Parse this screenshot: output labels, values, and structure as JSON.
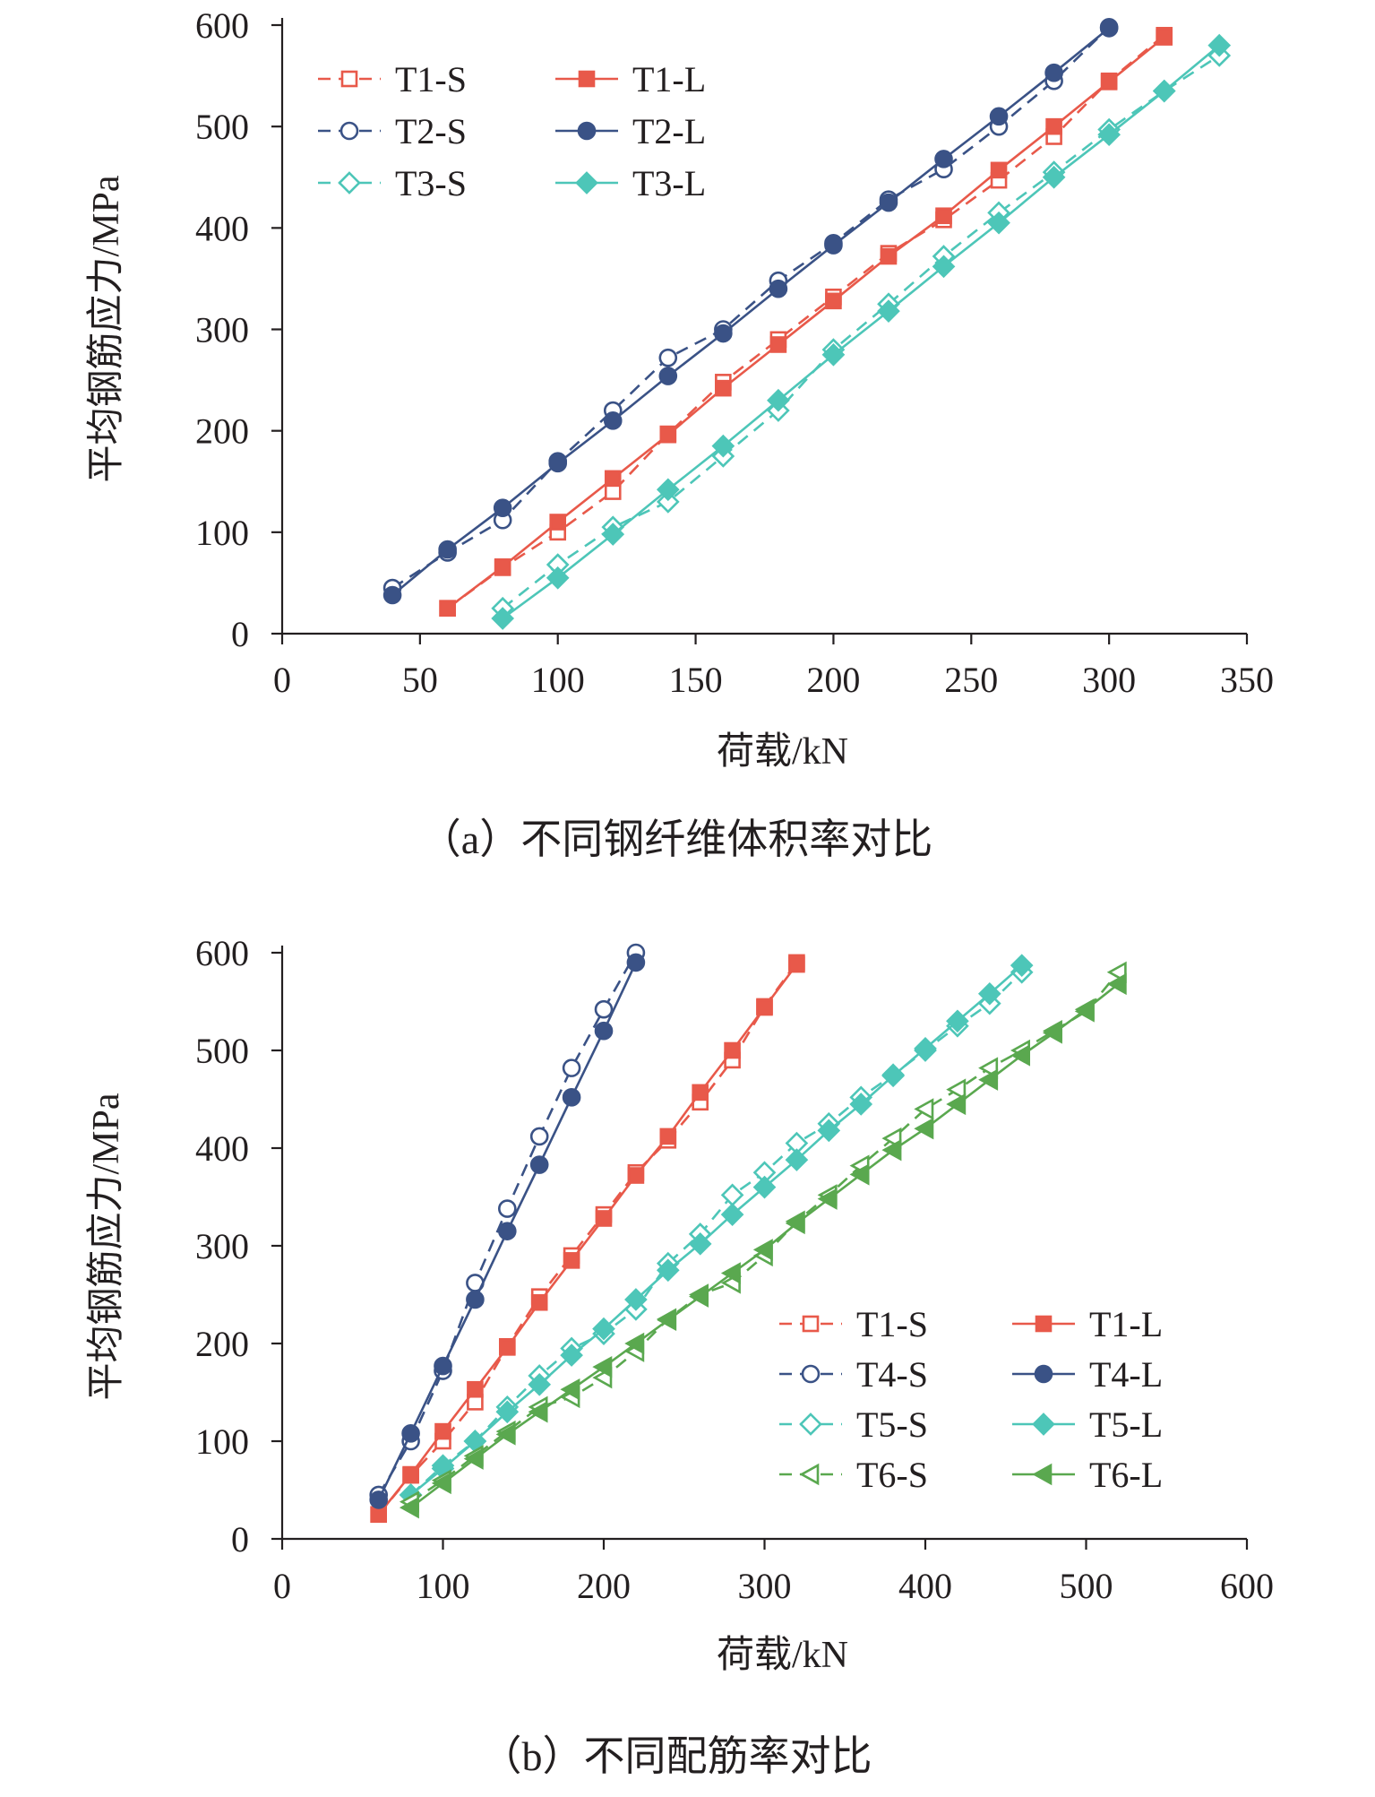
{
  "chart_data": [
    {
      "type": "line",
      "caption": "（a）不同钢纤维体积率对比",
      "xlabel": "荷载/kN",
      "ylabel": "平均钢筋应力/MPa",
      "xlim": [
        0,
        350
      ],
      "ylim": [
        0,
        600
      ],
      "xticks": [
        "0",
        "50",
        "100",
        "150",
        "200",
        "250",
        "300",
        "350"
      ],
      "yticks": [
        "0",
        "100",
        "200",
        "300",
        "400",
        "500",
        "600"
      ],
      "grid": false,
      "legend_position": "top-left",
      "series": [
        {
          "name": "T1-S",
          "color": "#e8594a",
          "marker": "square-open",
          "dash": true,
          "x": [
            60,
            80,
            100,
            120,
            140,
            160,
            180,
            200,
            220,
            240,
            260,
            280,
            300,
            320
          ],
          "y": [
            25,
            65,
            100,
            140,
            197,
            248,
            290,
            332,
            375,
            408,
            447,
            490,
            545,
            590
          ]
        },
        {
          "name": "T1-L",
          "color": "#e8594a",
          "marker": "square-filled",
          "dash": false,
          "x": [
            60,
            80,
            100,
            120,
            140,
            160,
            180,
            200,
            220,
            240,
            260,
            280,
            300,
            320
          ],
          "y": [
            25,
            66,
            110,
            153,
            196,
            242,
            285,
            328,
            372,
            412,
            457,
            500,
            544,
            588
          ]
        },
        {
          "name": "T2-S",
          "color": "#3a5286",
          "marker": "circle-open",
          "dash": true,
          "x": [
            40,
            60,
            80,
            100,
            120,
            140,
            160,
            180,
            200,
            220,
            240,
            260,
            280,
            300
          ],
          "y": [
            45,
            80,
            112,
            170,
            220,
            272,
            300,
            348,
            385,
            428,
            458,
            500,
            545,
            598
          ]
        },
        {
          "name": "T2-L",
          "color": "#3a5286",
          "marker": "circle-filled",
          "dash": false,
          "x": [
            40,
            60,
            80,
            100,
            120,
            140,
            160,
            180,
            200,
            220,
            240,
            260,
            280,
            300
          ],
          "y": [
            38,
            83,
            124,
            168,
            210,
            254,
            296,
            340,
            383,
            425,
            468,
            510,
            553,
            597
          ]
        },
        {
          "name": "T3-S",
          "color": "#4dc6b8",
          "marker": "diamond-open",
          "dash": true,
          "x": [
            80,
            100,
            120,
            140,
            160,
            180,
            200,
            220,
            240,
            260,
            280,
            300,
            320,
            340
          ],
          "y": [
            25,
            68,
            105,
            130,
            175,
            220,
            280,
            325,
            372,
            415,
            455,
            497,
            535,
            570
          ]
        },
        {
          "name": "T3-L",
          "color": "#4dc6b8",
          "marker": "diamond-filled",
          "dash": false,
          "x": [
            80,
            100,
            120,
            140,
            160,
            180,
            200,
            220,
            240,
            260,
            280,
            300,
            320,
            340
          ],
          "y": [
            15,
            55,
            98,
            142,
            185,
            230,
            275,
            318,
            362,
            405,
            450,
            492,
            535,
            580
          ]
        }
      ]
    },
    {
      "type": "line",
      "caption": "（b）不同配筋率对比",
      "xlabel": "荷载/kN",
      "ylabel": "平均钢筋应力/MPa",
      "xlim": [
        0,
        600
      ],
      "ylim": [
        0,
        600
      ],
      "xticks": [
        "0",
        "100",
        "200",
        "300",
        "400",
        "500",
        "600"
      ],
      "yticks": [
        "0",
        "100",
        "200",
        "300",
        "400",
        "500",
        "600"
      ],
      "grid": false,
      "legend_position": "bottom-right",
      "series": [
        {
          "name": "T1-S",
          "color": "#e8594a",
          "marker": "square-open",
          "dash": true,
          "x": [
            60,
            80,
            100,
            120,
            140,
            160,
            180,
            200,
            220,
            240,
            260,
            280,
            300,
            320
          ],
          "y": [
            25,
            65,
            100,
            140,
            197,
            248,
            290,
            332,
            375,
            408,
            447,
            490,
            545,
            590
          ]
        },
        {
          "name": "T1-L",
          "color": "#e8594a",
          "marker": "square-filled",
          "dash": false,
          "x": [
            60,
            80,
            100,
            120,
            140,
            160,
            180,
            200,
            220,
            240,
            260,
            280,
            300,
            320
          ],
          "y": [
            25,
            66,
            110,
            153,
            196,
            242,
            285,
            328,
            372,
            412,
            457,
            500,
            544,
            588
          ]
        },
        {
          "name": "T4-S",
          "color": "#3a5286",
          "marker": "circle-open",
          "dash": true,
          "x": [
            60,
            80,
            100,
            120,
            140,
            160,
            180,
            200,
            220
          ],
          "y": [
            45,
            100,
            172,
            262,
            338,
            412,
            482,
            542,
            600
          ]
        },
        {
          "name": "T4-L",
          "color": "#3a5286",
          "marker": "circle-filled",
          "dash": false,
          "x": [
            60,
            80,
            100,
            120,
            140,
            160,
            180,
            200,
            220
          ],
          "y": [
            40,
            108,
            177,
            245,
            315,
            383,
            452,
            520,
            590
          ]
        },
        {
          "name": "T5-S",
          "color": "#4dc6b8",
          "marker": "diamond-open",
          "dash": true,
          "x": [
            80,
            100,
            120,
            140,
            160,
            180,
            200,
            220,
            240,
            260,
            280,
            300,
            320,
            340,
            360,
            380,
            400,
            420,
            440,
            460
          ],
          "y": [
            45,
            75,
            100,
            135,
            167,
            195,
            210,
            235,
            282,
            312,
            352,
            375,
            405,
            425,
            452,
            475,
            500,
            525,
            548,
            580
          ]
        },
        {
          "name": "T5-L",
          "color": "#4dc6b8",
          "marker": "diamond-filled",
          "dash": false,
          "x": [
            80,
            100,
            120,
            140,
            160,
            180,
            200,
            220,
            240,
            260,
            280,
            300,
            320,
            340,
            360,
            380,
            400,
            420,
            440,
            460
          ],
          "y": [
            45,
            72,
            100,
            130,
            158,
            188,
            215,
            245,
            275,
            302,
            332,
            360,
            388,
            418,
            445,
            474,
            502,
            530,
            558,
            587
          ]
        },
        {
          "name": "T6-S",
          "color": "#5aa84f",
          "marker": "triangle-left-open",
          "dash": true,
          "x": [
            80,
            100,
            120,
            140,
            160,
            180,
            200,
            220,
            240,
            260,
            280,
            300,
            320,
            340,
            360,
            380,
            400,
            420,
            440,
            460,
            480,
            500,
            520
          ],
          "y": [
            38,
            60,
            85,
            110,
            135,
            145,
            165,
            192,
            225,
            250,
            262,
            290,
            325,
            352,
            382,
            410,
            440,
            460,
            482,
            500,
            520,
            540,
            580
          ]
        },
        {
          "name": "T6-L",
          "color": "#5aa84f",
          "marker": "triangle-left-filled",
          "dash": false,
          "x": [
            80,
            100,
            120,
            140,
            160,
            180,
            200,
            220,
            240,
            260,
            280,
            300,
            320,
            340,
            360,
            380,
            400,
            420,
            440,
            460,
            480,
            500,
            520
          ],
          "y": [
            32,
            57,
            82,
            107,
            130,
            153,
            176,
            200,
            224,
            248,
            272,
            296,
            323,
            348,
            373,
            398,
            420,
            445,
            470,
            495,
            518,
            542,
            568
          ]
        }
      ]
    }
  ]
}
